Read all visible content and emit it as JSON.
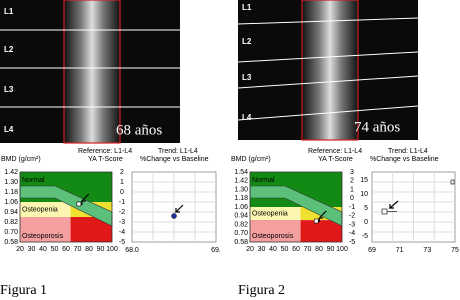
{
  "figures": [
    {
      "vertebra_labels": [
        "L1",
        "L2",
        "L3",
        "L4"
      ],
      "age_label": "68 años",
      "reference": "Reference: L1-L4",
      "bmd_label": "BMD (g/cm²)",
      "tscore_label": "YA T-Score",
      "trend": "Trend: L1-L4",
      "change_label": "%Change vs Baseline",
      "bmd_ticks": [
        "1.42",
        "1.30",
        "1.18",
        "1.06",
        "0.94",
        "0.82",
        "0.70",
        "0.58"
      ],
      "tscore_ticks": [
        "2",
        "1",
        "0",
        "-1",
        "-2",
        "-3",
        "-4",
        "-5"
      ],
      "age_ticks": [
        "20",
        "30",
        "40",
        "50",
        "60",
        "70",
        "80",
        "90",
        "100"
      ],
      "zones": [
        "Normal",
        "Osteopenia",
        "Osteoporosis"
      ],
      "trend_y_ticks": [],
      "trend_x_ticks": [
        "68.0",
        "69."
      ],
      "caption": "Figura 1"
    },
    {
      "vertebra_labels": [
        "L1",
        "L2",
        "L3",
        "L4"
      ],
      "age_label": "74 años",
      "reference": "Reference: L1-L4",
      "bmd_label": "BMD (g/cm²)",
      "tscore_label": "YA T-Score",
      "trend": "Trend: L1-L4",
      "change_label": "%Change vs Baseline",
      "bmd_ticks": [
        "1.54",
        "1.42",
        "1.30",
        "1.18",
        "1.06",
        "0.94",
        "0.82",
        "0.70",
        "0.58"
      ],
      "tscore_ticks": [
        "3",
        "2",
        "1",
        "0",
        "-1",
        "-2",
        "-3",
        "-4",
        "-5"
      ],
      "age_ticks": [
        "20",
        "30",
        "40",
        "50",
        "60",
        "70",
        "80",
        "90",
        "100"
      ],
      "zones": [
        "Normal",
        "Osteopenia",
        "Osteoporosis"
      ],
      "trend_y_ticks": [
        "15",
        "10",
        "5",
        "0",
        "-5"
      ],
      "trend_x_ticks": [
        "69",
        "71",
        "73",
        "75"
      ],
      "caption": "Figura 2"
    }
  ]
}
